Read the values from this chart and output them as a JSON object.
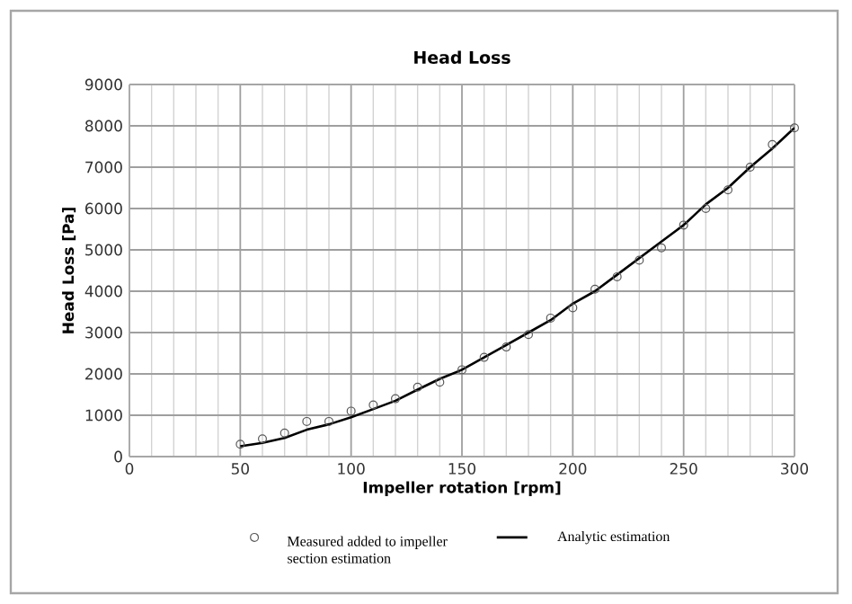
{
  "chart_data": {
    "type": "line",
    "title": "Head Loss",
    "xlabel": "Impeller rotation [rpm]",
    "ylabel": "Head Loss [Pa]",
    "xlim": [
      0,
      300
    ],
    "xticks": [
      0,
      50,
      100,
      150,
      200,
      250,
      300
    ],
    "ylim": [
      0,
      9000
    ],
    "yticks": [
      0,
      1000,
      2000,
      3000,
      4000,
      5000,
      6000,
      7000,
      8000,
      9000
    ],
    "grid": true,
    "legend": "bottom",
    "series": [
      {
        "name": "Measured added to impeller section estimation",
        "type": "scatter",
        "marker": "circle",
        "color": "#595959",
        "x": [
          50,
          60,
          70,
          80,
          90,
          100,
          110,
          120,
          130,
          140,
          150,
          160,
          170,
          180,
          190,
          200,
          210,
          220,
          230,
          240,
          250,
          260,
          270,
          280,
          290,
          300
        ],
        "values": [
          300,
          430,
          570,
          850,
          850,
          1100,
          1250,
          1400,
          1680,
          1800,
          2100,
          2400,
          2650,
          2950,
          3350,
          3600,
          4050,
          4350,
          4750,
          5050,
          5600,
          6000,
          6450,
          7000,
          7550,
          7950
        ]
      },
      {
        "name": "Analytic estimation",
        "marker": "none",
        "line_style": "solid",
        "color": "#000000",
        "x": [
          50,
          60,
          70,
          80,
          90,
          100,
          110,
          120,
          130,
          140,
          150,
          160,
          170,
          180,
          190,
          200,
          210,
          220,
          230,
          240,
          250,
          260,
          270,
          280,
          290,
          300
        ],
        "values": [
          250,
          330,
          450,
          650,
          780,
          950,
          1150,
          1350,
          1620,
          1880,
          2100,
          2400,
          2700,
          3000,
          3300,
          3700,
          4000,
          4400,
          4800,
          5200,
          5600,
          6100,
          6500,
          7000,
          7450,
          7950
        ]
      }
    ]
  }
}
